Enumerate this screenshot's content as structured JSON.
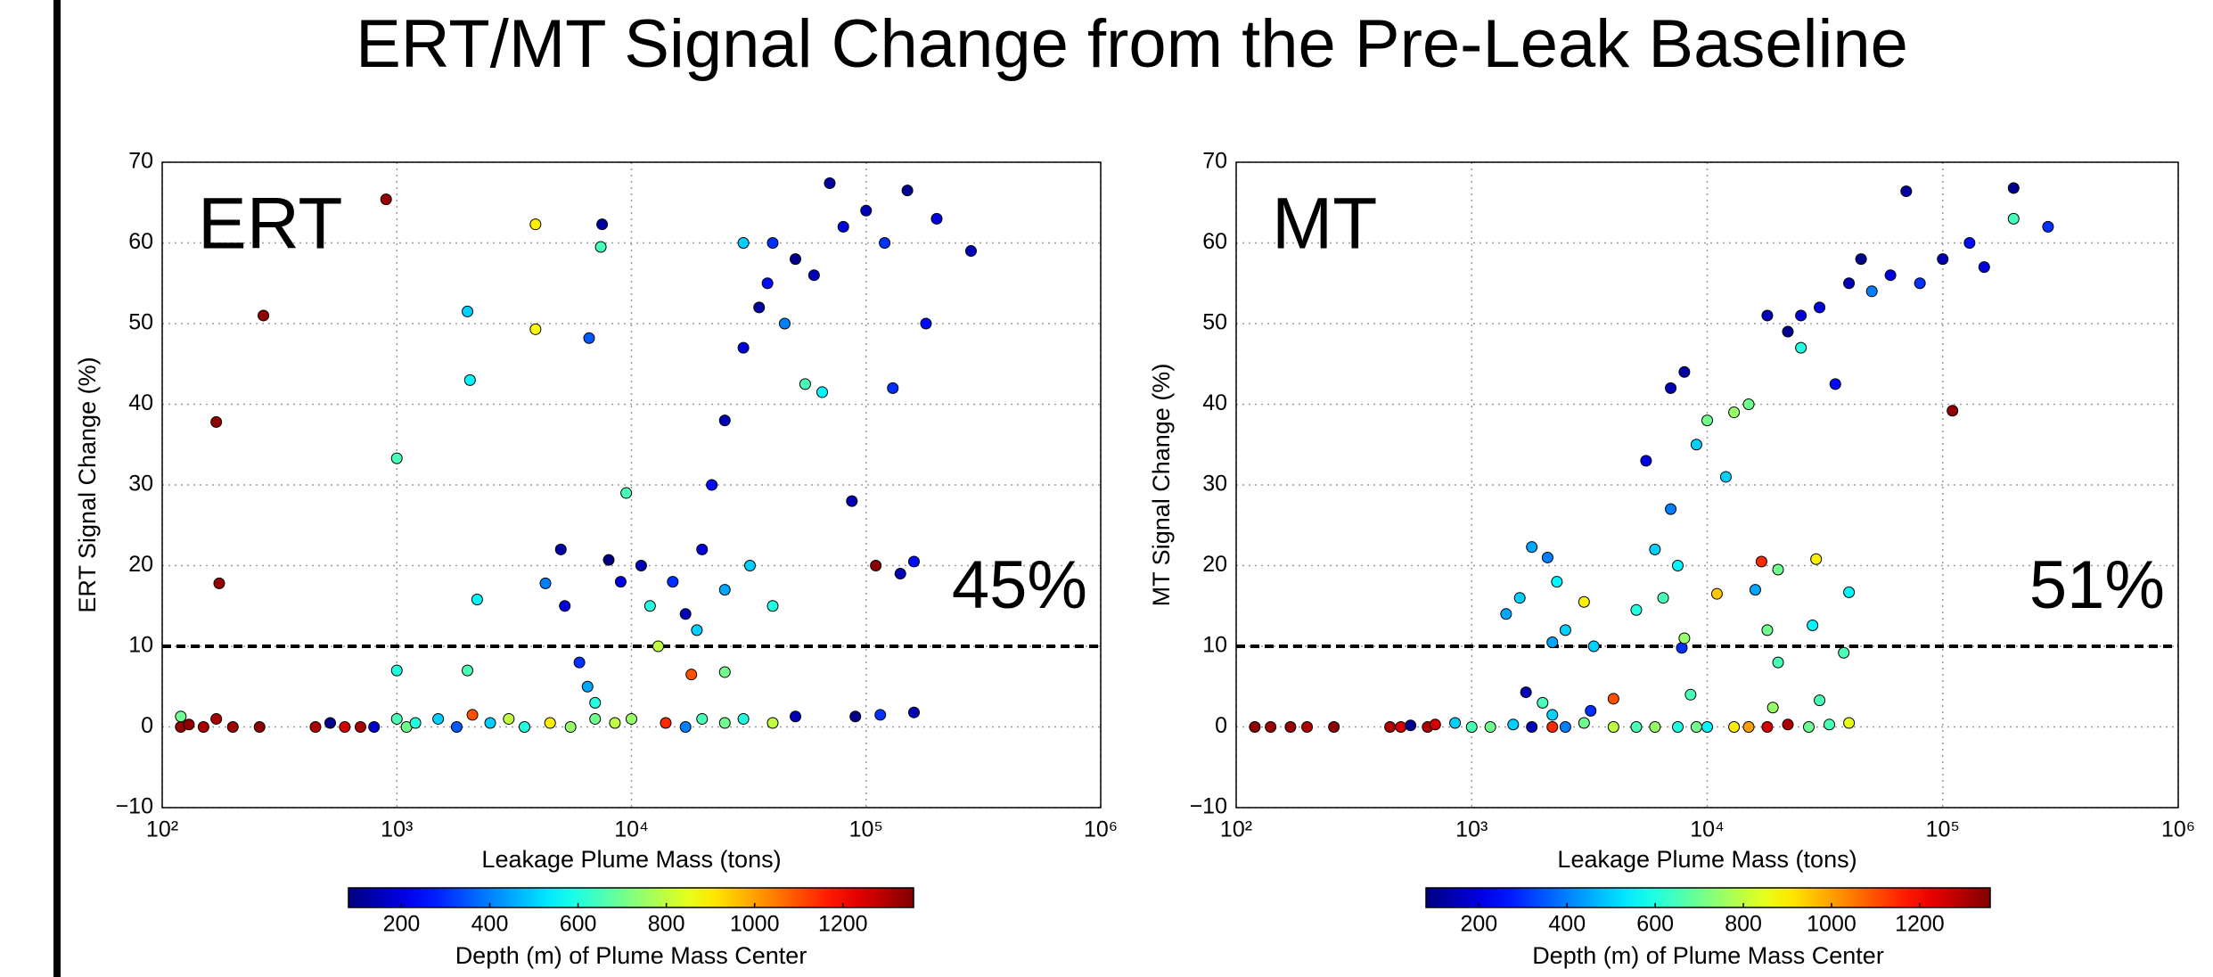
{
  "title": "ERT/MT Signal Change from the Pre-Leak Baseline",
  "chart_data": [
    {
      "type": "scatter",
      "label": "ERT",
      "annotation": "45%",
      "xlabel": "Leakage Plume Mass (tons)",
      "ylabel": "ERT Signal Change (%)",
      "xscale": "log",
      "grid": true,
      "threshold": 10,
      "xlim": [
        100,
        1000000
      ],
      "xticks": [
        {
          "value": 100,
          "label": "10²"
        },
        {
          "value": 1000,
          "label": "10³"
        },
        {
          "value": 10000,
          "label": "10⁴"
        },
        {
          "value": 100000,
          "label": "10⁵"
        },
        {
          "value": 1000000,
          "label": "10⁶"
        }
      ],
      "ylim": [
        -10,
        70
      ],
      "yticks": [
        {
          "value": -10,
          "label": "−10"
        },
        0,
        10,
        20,
        30,
        40,
        50,
        60,
        70
      ],
      "x": [
        120,
        130,
        150,
        170,
        200,
        260,
        120,
        450,
        520,
        600,
        700,
        800,
        1000,
        1100,
        1200,
        1500,
        1800,
        2100,
        2500,
        3000,
        3500,
        4500,
        5500,
        7000,
        8500,
        10000,
        14000,
        17000,
        20000,
        25000,
        30000,
        40000,
        50000,
        90000,
        115000,
        160000,
        170,
        175,
        270,
        900,
        1000,
        1000,
        2000,
        2050,
        2000,
        2200,
        3900,
        3900,
        4300,
        6600,
        7500,
        7400,
        5000,
        5200,
        6000,
        6500,
        7000,
        8000,
        9000,
        9500,
        11000,
        12000,
        13000,
        15000,
        17000,
        19000,
        20000,
        22000,
        25000,
        30000,
        35000,
        38000,
        40000,
        45000,
        50000,
        60000,
        70000,
        80000,
        100000,
        120000,
        150000,
        200000,
        280000,
        30000,
        55000,
        65000,
        87000,
        110000,
        140000,
        160000,
        25000,
        32000,
        40000,
        18000,
        25000,
        180000,
        130000
      ],
      "values": [
        0,
        0.3,
        0,
        1,
        0,
        0,
        1.3,
        0,
        0.5,
        0,
        0,
        0,
        1,
        0,
        0.5,
        1,
        0,
        1.5,
        0.5,
        1,
        0,
        0.5,
        0,
        1,
        0.5,
        1,
        0.5,
        0,
        1,
        0.5,
        1,
        0.5,
        1.3,
        1.3,
        1.5,
        1.8,
        37.8,
        17.8,
        51,
        65.4,
        33.3,
        7,
        51.5,
        43,
        7,
        15.8,
        62.3,
        49.3,
        17.8,
        48.2,
        62.3,
        59.5,
        22,
        15,
        8,
        5,
        3,
        20.7,
        18,
        29,
        20,
        15,
        10,
        18,
        14,
        12,
        22,
        30,
        38,
        47,
        52,
        55,
        60,
        50,
        58,
        56,
        67.4,
        62,
        64,
        60,
        66.5,
        63,
        59,
        60,
        42.5,
        41.5,
        28,
        20,
        19,
        20.5,
        17,
        20,
        15,
        6.5,
        6.8,
        50,
        42
      ],
      "depth": [
        1330,
        1340,
        1300,
        1310,
        1320,
        1340,
        700,
        1300,
        100,
        1250,
        1300,
        180,
        650,
        700,
        600,
        500,
        350,
        1100,
        500,
        800,
        600,
        900,
        750,
        700,
        800,
        750,
        1150,
        400,
        650,
        700,
        600,
        800,
        150,
        100,
        300,
        150,
        1340,
        1330,
        1340,
        1330,
        650,
        600,
        500,
        550,
        650,
        550,
        900,
        880,
        400,
        350,
        120,
        650,
        130,
        200,
        300,
        450,
        600,
        80,
        200,
        650,
        150,
        600,
        800,
        300,
        150,
        500,
        200,
        250,
        150,
        200,
        120,
        250,
        300,
        400,
        100,
        150,
        120,
        200,
        150,
        300,
        100,
        200,
        150,
        500,
        650,
        550,
        150,
        1350,
        150,
        250,
        450,
        500,
        600,
        1100,
        700,
        250,
        300
      ],
      "colorbar": {
        "label": "Depth (m) of Plume Mass Center",
        "cmap": "jet",
        "lim": [
          80,
          1360
        ],
        "ticks": [
          200,
          400,
          600,
          800,
          1000,
          1200
        ]
      }
    },
    {
      "type": "scatter",
      "label": "MT",
      "annotation": "51%",
      "xlabel": "Leakage Plume Mass (tons)",
      "ylabel": "MT Signal Change (%)",
      "xscale": "log",
      "grid": true,
      "threshold": 10,
      "xlim": [
        100,
        1000000
      ],
      "xticks": [
        {
          "value": 100,
          "label": "10²"
        },
        {
          "value": 1000,
          "label": "10³"
        },
        {
          "value": 10000,
          "label": "10⁴"
        },
        {
          "value": 100000,
          "label": "10⁵"
        },
        {
          "value": 1000000,
          "label": "10⁶"
        }
      ],
      "ylim": [
        -10,
        70
      ],
      "yticks": [
        {
          "value": -10,
          "label": "−10"
        },
        0,
        10,
        20,
        30,
        40,
        50,
        60,
        70
      ],
      "x": [
        120,
        140,
        170,
        200,
        260,
        450,
        500,
        550,
        650,
        700,
        850,
        1000,
        1200,
        1500,
        1800,
        2200,
        2500,
        3000,
        4000,
        5000,
        6000,
        7500,
        9000,
        10000,
        13000,
        15000,
        18000,
        22000,
        27000,
        33000,
        40000,
        1700,
        2000,
        2200,
        1400,
        1600,
        1800,
        2100,
        2300,
        2200,
        2500,
        3000,
        3300,
        3200,
        4000,
        5000,
        5500,
        6000,
        6500,
        7000,
        7500,
        7800,
        8000,
        8500,
        7000,
        8000,
        9000,
        10000,
        12000,
        11000,
        13000,
        15000,
        16000,
        17000,
        18000,
        20000,
        20000,
        22000,
        25000,
        30000,
        35000,
        40000,
        45000,
        50000,
        60000,
        70000,
        80000,
        100000,
        110000,
        130000,
        150000,
        200000,
        280000,
        200000,
        29000,
        28000,
        38000,
        40000,
        30000,
        19000,
        18000,
        25000
      ],
      "values": [
        0,
        0,
        0,
        0,
        0,
        0,
        0,
        0.2,
        0,
        0.3,
        0.5,
        0,
        0,
        0.3,
        0,
        0,
        0,
        0.5,
        0,
        0,
        0,
        0,
        0,
        0,
        0,
        0,
        0,
        0.3,
        0,
        0.3,
        0.5,
        4.3,
        3,
        1.5,
        14,
        16,
        22.3,
        21,
        18,
        10.5,
        12,
        15.5,
        10,
        2,
        3.5,
        14.5,
        33,
        22,
        16,
        27,
        20,
        9.8,
        11,
        4,
        42,
        44,
        35,
        38,
        31,
        16.5,
        39,
        40,
        17,
        20.5,
        12,
        19.5,
        8,
        49,
        47,
        52,
        42.5,
        55,
        58,
        54,
        56,
        66.4,
        55,
        58,
        39.2,
        60,
        57,
        66.8,
        62,
        63,
        20.8,
        12.6,
        9.2,
        16.7,
        3.3,
        2.4,
        51,
        51
      ],
      "depth": [
        1340,
        1320,
        1330,
        1300,
        1340,
        1300,
        1250,
        100,
        1300,
        1250,
        500,
        650,
        700,
        500,
        150,
        1150,
        400,
        700,
        800,
        650,
        750,
        600,
        700,
        550,
        900,
        1000,
        1250,
        1300,
        700,
        650,
        850,
        150,
        650,
        500,
        450,
        500,
        450,
        400,
        550,
        450,
        500,
        900,
        500,
        300,
        1100,
        600,
        200,
        500,
        650,
        400,
        550,
        300,
        750,
        650,
        150,
        120,
        500,
        700,
        500,
        950,
        750,
        700,
        450,
        1150,
        700,
        700,
        650,
        100,
        600,
        200,
        250,
        150,
        100,
        400,
        200,
        120,
        300,
        150,
        1340,
        250,
        200,
        100,
        300,
        650,
        900,
        550,
        650,
        550,
        650,
        750,
        150,
        200
      ],
      "colorbar": {
        "label": "Depth (m) of Plume Mass Center",
        "cmap": "jet",
        "lim": [
          80,
          1360
        ],
        "ticks": [
          200,
          400,
          600,
          800,
          1000,
          1200
        ]
      }
    }
  ]
}
